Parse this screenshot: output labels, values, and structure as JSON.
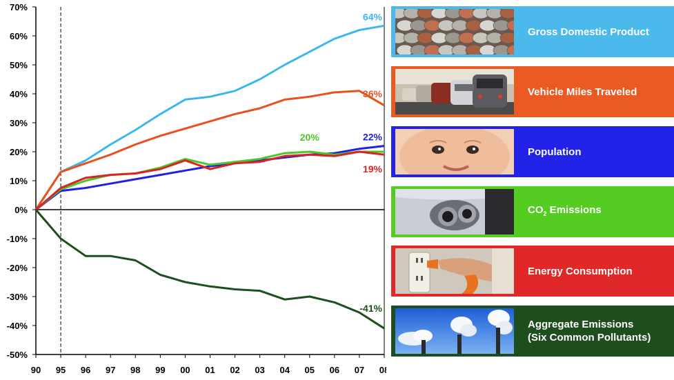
{
  "chart_data": {
    "type": "line",
    "x": [
      "90",
      "95",
      "96",
      "97",
      "98",
      "99",
      "00",
      "01",
      "02",
      "03",
      "04",
      "05",
      "06",
      "07",
      "08"
    ],
    "ylim": [
      -50,
      70
    ],
    "yticks": [
      "70%",
      "60%",
      "50%",
      "40%",
      "30%",
      "20%",
      "10%",
      "0%",
      "-10%",
      "-20%",
      "-30%",
      "-40%",
      "-50%"
    ],
    "reference_line_x": "95",
    "series": [
      {
        "name": "Gross Domestic Product",
        "color": "#3db6ee",
        "end_label": "64%",
        "values": [
          0,
          13,
          17,
          22.5,
          27.5,
          33,
          38,
          39,
          41,
          45,
          50,
          54.5,
          59,
          62,
          63.5
        ]
      },
      {
        "name": "Vehicle Miles Traveled",
        "color": "#e8501e",
        "end_label": "36%",
        "values": [
          0,
          13,
          16,
          19,
          22.5,
          25.5,
          28,
          30.5,
          33,
          35,
          38,
          39,
          40.5,
          41,
          36
        ]
      },
      {
        "name": "Population",
        "color": "#2020e0",
        "end_label": "22%",
        "values": [
          0,
          6.5,
          7.5,
          9,
          10.5,
          12,
          13.5,
          15,
          16,
          17,
          18,
          19,
          19.5,
          21,
          22
        ]
      },
      {
        "name": "CO2 Emissions",
        "color": "#4ec52a",
        "end_label": "20%",
        "values": [
          0,
          7,
          10,
          12,
          12.5,
          14.5,
          17.5,
          15.5,
          16.5,
          17.5,
          19.5,
          20,
          19,
          20,
          20
        ]
      },
      {
        "name": "Energy Consumption",
        "color": "#d82424",
        "end_label": "19%",
        "values": [
          0,
          7.5,
          11,
          12,
          12.5,
          14,
          17,
          14,
          16,
          16.5,
          18.5,
          19,
          18.5,
          20,
          19
        ]
      },
      {
        "name": "Aggregate Emissions (Six Common Pollutants)",
        "color": "#1d4f1d",
        "end_label": "-41%",
        "values": [
          0,
          -10,
          -16,
          -16,
          -17.5,
          -22.5,
          -25,
          -26.5,
          -27.5,
          -28,
          -31,
          -30,
          -32,
          -35.5,
          -41
        ]
      }
    ]
  },
  "legend": [
    {
      "label": "Gross Domestic Product",
      "color": "#4cb9ec",
      "icon": "coins-photo"
    },
    {
      "label": "Vehicle Miles Traveled",
      "color": "#ea5a22",
      "icon": "traffic-photo"
    },
    {
      "label": "Population",
      "color": "#2222e8",
      "icon": "baby-photo"
    },
    {
      "label_main": "CO",
      "label_sub": "2",
      "label_rest": " Emissions",
      "color": "#55cc22",
      "icon": "exhaust-photo"
    },
    {
      "label": "Energy Consumption",
      "color": "#e02828",
      "icon": "plug-photo"
    },
    {
      "label_line1": "Aggregate Emissions",
      "label_line2": "(Six Common Pollutants)",
      "color": "#1e4d1e",
      "icon": "smokestacks-photo"
    }
  ]
}
